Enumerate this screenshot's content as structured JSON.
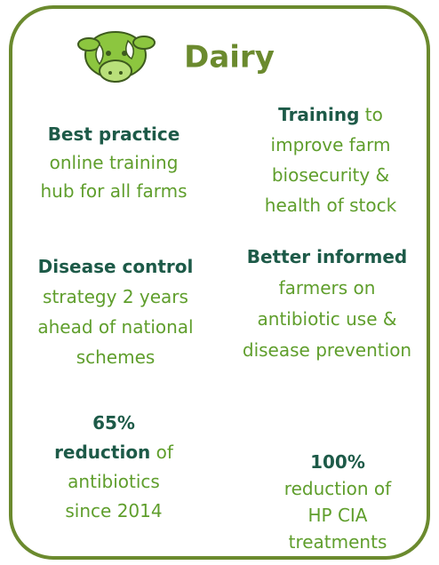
{
  "title": "Dairy",
  "items": [
    {
      "lines": [
        [
          {
            "text": "Best practice",
            "bold": true
          }
        ],
        [
          {
            "text": "online training"
          }
        ],
        [
          {
            "text": "hub for all farms"
          }
        ]
      ]
    },
    {
      "lines": [
        [
          {
            "text": "Training",
            "bold": true
          },
          {
            "text": " to"
          }
        ],
        [
          {
            "text": "improve farm"
          }
        ],
        [
          {
            "text": "biosecurity &"
          }
        ],
        [
          {
            "text": "health of stock"
          }
        ]
      ]
    },
    {
      "lines": [
        [
          {
            "text": "Disease control",
            "bold": true
          }
        ],
        [
          {
            "text": "strategy 2 years"
          }
        ],
        [
          {
            "text": "ahead of national"
          }
        ],
        [
          {
            "text": "schemes"
          }
        ]
      ]
    },
    {
      "lines": [
        [
          {
            "text": "Better informed",
            "bold": true
          }
        ],
        [
          {
            "text": "farmers on"
          }
        ],
        [
          {
            "text": "antibiotic use &"
          }
        ],
        [
          {
            "text": "disease prevention"
          }
        ]
      ]
    },
    {
      "lines": [
        [
          {
            "text": "65%",
            "bold": true
          }
        ],
        [
          {
            "text": "reduction",
            "bold": true
          },
          {
            "text": " of"
          }
        ],
        [
          {
            "text": "antibiotics"
          }
        ],
        [
          {
            "text": "since 2014"
          }
        ]
      ]
    },
    {
      "lines": [
        [
          {
            "text": "100%",
            "bold": true
          }
        ],
        [
          {
            "text": "reduction of"
          }
        ],
        [
          {
            "text": "HP CIA"
          }
        ],
        [
          {
            "text": "treatments"
          }
        ]
      ]
    }
  ]
}
